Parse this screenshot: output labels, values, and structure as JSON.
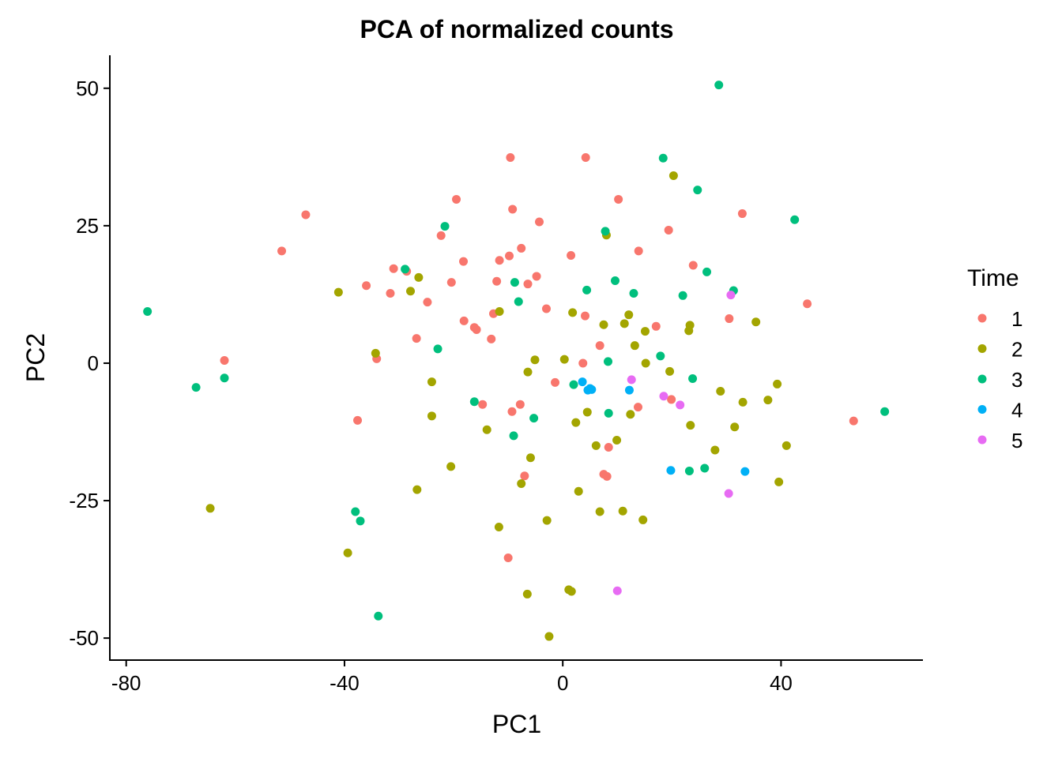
{
  "chart_data": {
    "type": "scatter",
    "title": "PCA of normalized counts",
    "xlabel": "PC1",
    "ylabel": "PC2",
    "xlim": [
      -83,
      66
    ],
    "ylim": [
      -54,
      56
    ],
    "x_ticks": [
      -80,
      -40,
      0,
      40
    ],
    "y_ticks": [
      50,
      25,
      0,
      -25,
      -50
    ],
    "grid": false,
    "legend": {
      "title": "Time",
      "position": "right"
    },
    "series": [
      {
        "name": "1",
        "color": "#F8766D",
        "points": [
          [
            -9.6,
            37.4
          ],
          [
            4.2,
            37.4
          ],
          [
            -19.5,
            29.8
          ],
          [
            10.2,
            29.8
          ],
          [
            -9.2,
            28.0
          ],
          [
            32.9,
            27.2
          ],
          [
            -47.1,
            27.0
          ],
          [
            -4.3,
            25.7
          ],
          [
            19.4,
            24.2
          ],
          [
            -22.3,
            23.2
          ],
          [
            -51.5,
            20.4
          ],
          [
            13.9,
            20.4
          ],
          [
            -7.6,
            20.9
          ],
          [
            1.5,
            19.6
          ],
          [
            -9.8,
            19.5
          ],
          [
            -11.6,
            18.7
          ],
          [
            -18.2,
            18.5
          ],
          [
            23.9,
            17.8
          ],
          [
            -31.0,
            17.2
          ],
          [
            -28.6,
            16.7
          ],
          [
            -4.8,
            15.8
          ],
          [
            -20.4,
            14.7
          ],
          [
            -6.4,
            14.4
          ],
          [
            -12.1,
            14.9
          ],
          [
            -36.0,
            14.1
          ],
          [
            -31.6,
            12.7
          ],
          [
            -24.8,
            11.1
          ],
          [
            44.8,
            10.8
          ],
          [
            -3.0,
            9.9
          ],
          [
            -12.7,
            9.0
          ],
          [
            4.1,
            8.6
          ],
          [
            30.5,
            8.1
          ],
          [
            -18.1,
            7.7
          ],
          [
            -16.2,
            6.5
          ],
          [
            -15.8,
            6.1
          ],
          [
            17.1,
            6.7
          ],
          [
            -26.8,
            4.5
          ],
          [
            -13.1,
            4.4
          ],
          [
            6.8,
            3.2
          ],
          [
            -34.1,
            0.8
          ],
          [
            -62.0,
            0.5
          ],
          [
            3.7,
            0.0
          ],
          [
            -1.4,
            -3.5
          ],
          [
            19.9,
            -6.6
          ],
          [
            -14.7,
            -7.5
          ],
          [
            13.8,
            -8.0
          ],
          [
            -7.8,
            -7.5
          ],
          [
            -9.3,
            -8.8
          ],
          [
            -37.6,
            -10.4
          ],
          [
            53.3,
            -10.5
          ],
          [
            8.4,
            -15.3
          ],
          [
            -7.0,
            -20.5
          ],
          [
            7.5,
            -20.2
          ],
          [
            8.1,
            -20.6
          ],
          [
            -10.0,
            -35.4
          ]
        ]
      },
      {
        "name": "2",
        "color": "#A3A500",
        "points": [
          [
            20.3,
            34.1
          ],
          [
            8.0,
            23.3
          ],
          [
            -26.4,
            15.6
          ],
          [
            -27.9,
            13.1
          ],
          [
            -41.1,
            12.9
          ],
          [
            -11.6,
            9.4
          ],
          [
            12.1,
            8.8
          ],
          [
            1.8,
            9.2
          ],
          [
            35.4,
            7.5
          ],
          [
            7.5,
            7.0
          ],
          [
            11.3,
            7.2
          ],
          [
            23.3,
            6.9
          ],
          [
            15.1,
            5.8
          ],
          [
            23.1,
            5.9
          ],
          [
            13.2,
            3.2
          ],
          [
            -34.3,
            1.8
          ],
          [
            -5.1,
            0.6
          ],
          [
            0.3,
            0.7
          ],
          [
            15.2,
            0.0
          ],
          [
            -6.4,
            -1.6
          ],
          [
            19.6,
            -1.5
          ],
          [
            -24.0,
            -3.4
          ],
          [
            39.3,
            -3.8
          ],
          [
            28.9,
            -5.1
          ],
          [
            37.6,
            -6.7
          ],
          [
            33.0,
            -7.1
          ],
          [
            4.5,
            -8.9
          ],
          [
            12.4,
            -9.3
          ],
          [
            -24.0,
            -9.6
          ],
          [
            2.4,
            -10.8
          ],
          [
            -13.9,
            -12.1
          ],
          [
            23.4,
            -11.3
          ],
          [
            31.5,
            -11.6
          ],
          [
            9.9,
            -14.0
          ],
          [
            6.1,
            -15.0
          ],
          [
            41.0,
            -15.0
          ],
          [
            27.9,
            -15.8
          ],
          [
            -5.9,
            -17.2
          ],
          [
            -20.5,
            -18.8
          ],
          [
            -7.6,
            -21.9
          ],
          [
            39.6,
            -21.6
          ],
          [
            -26.7,
            -23.0
          ],
          [
            2.9,
            -23.3
          ],
          [
            -64.6,
            -26.4
          ],
          [
            6.8,
            -27.0
          ],
          [
            11.0,
            -26.9
          ],
          [
            -2.9,
            -28.6
          ],
          [
            14.7,
            -28.5
          ],
          [
            -11.7,
            -29.8
          ],
          [
            -39.4,
            -34.5
          ],
          [
            -6.5,
            -42.0
          ],
          [
            1.1,
            -41.2
          ],
          [
            1.6,
            -41.5
          ],
          [
            -2.5,
            -49.7
          ]
        ]
      },
      {
        "name": "3",
        "color": "#00BF7D",
        "points": [
          [
            28.6,
            50.6
          ],
          [
            18.4,
            37.3
          ],
          [
            24.7,
            31.5
          ],
          [
            42.5,
            26.1
          ],
          [
            -21.6,
            24.9
          ],
          [
            7.8,
            24.0
          ],
          [
            -28.9,
            17.1
          ],
          [
            26.4,
            16.6
          ],
          [
            -8.8,
            14.7
          ],
          [
            9.6,
            15.0
          ],
          [
            4.4,
            13.3
          ],
          [
            31.3,
            13.2
          ],
          [
            13.0,
            12.7
          ],
          [
            22.0,
            12.3
          ],
          [
            -8.1,
            11.2
          ],
          [
            -22.9,
            2.6
          ],
          [
            17.9,
            1.3
          ],
          [
            -76.1,
            9.4
          ],
          [
            8.3,
            0.3
          ],
          [
            -62.0,
            -2.7
          ],
          [
            23.8,
            -2.8
          ],
          [
            -67.2,
            -4.4
          ],
          [
            2.0,
            -3.9
          ],
          [
            -16.2,
            -7.0
          ],
          [
            59.0,
            -8.8
          ],
          [
            8.4,
            -9.1
          ],
          [
            -5.3,
            -10.0
          ],
          [
            -9.0,
            -13.2
          ],
          [
            26.0,
            -19.1
          ],
          [
            23.2,
            -19.6
          ],
          [
            -38.0,
            -27.0
          ],
          [
            -37.1,
            -28.7
          ],
          [
            -33.8,
            -46.0
          ]
        ]
      },
      {
        "name": "4",
        "color": "#00B0F6",
        "points": [
          [
            3.6,
            -3.4
          ],
          [
            5.0,
            -4.6
          ],
          [
            4.6,
            -4.9
          ],
          [
            5.3,
            -4.8
          ],
          [
            12.2,
            -4.9
          ],
          [
            19.8,
            -19.5
          ],
          [
            33.4,
            -19.7
          ]
        ]
      },
      {
        "name": "5",
        "color": "#E76BF3",
        "points": [
          [
            30.8,
            12.4
          ],
          [
            12.6,
            -3.0
          ],
          [
            18.5,
            -6.0
          ],
          [
            21.5,
            -7.6
          ],
          [
            30.4,
            -23.7
          ],
          [
            10.0,
            -41.4
          ]
        ]
      }
    ]
  }
}
